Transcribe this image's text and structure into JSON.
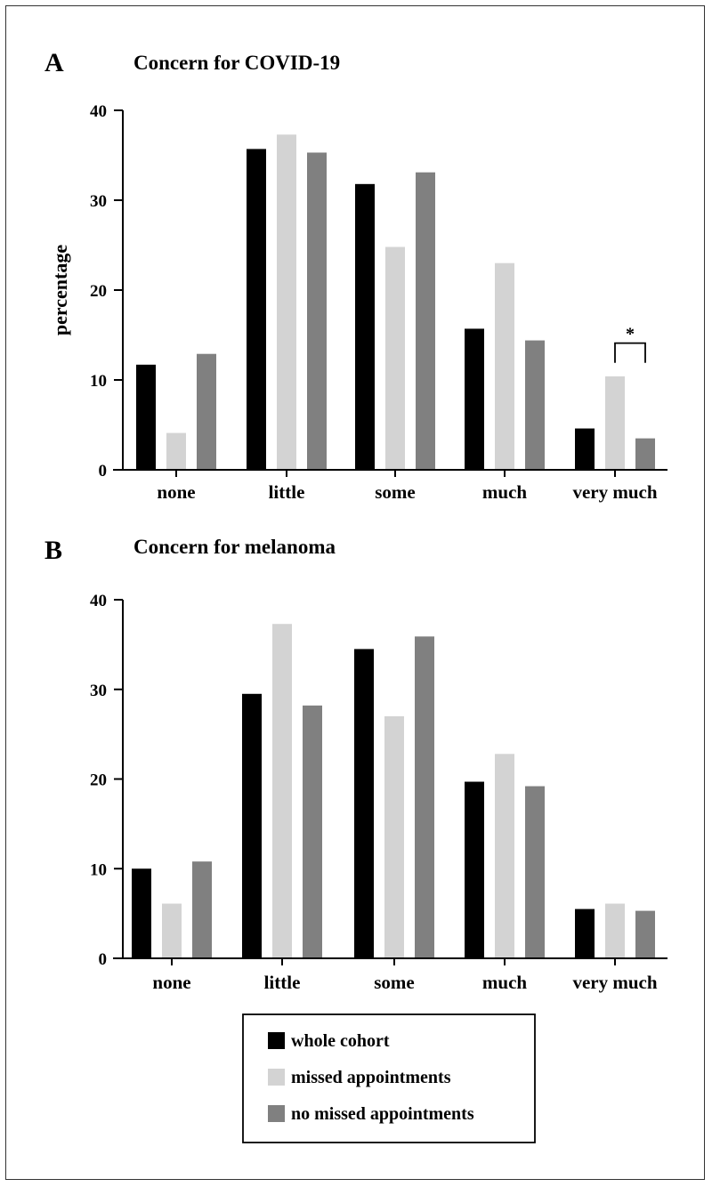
{
  "colors": {
    "whole_cohort": "#000000",
    "missed_appointments": "#d3d3d3",
    "no_missed_appointments": "#808080",
    "axis": "#000000"
  },
  "legend": {
    "items": [
      {
        "label": "whole cohort",
        "color": "#000000"
      },
      {
        "label": "missed appointments",
        "color": "#d3d3d3"
      },
      {
        "label": "no missed appointments",
        "color": "#808080"
      }
    ]
  },
  "chart_data": [
    {
      "type": "bar",
      "panel": "A",
      "title": "Concern for COVID-19",
      "xlabel": "",
      "ylabel": "percentage",
      "ylim": [
        0,
        40
      ],
      "yticks": [
        0,
        10,
        20,
        30,
        40
      ],
      "categories": [
        "none",
        "little",
        "some",
        "much",
        "very much"
      ],
      "series": [
        {
          "name": "whole cohort",
          "values": [
            11.7,
            35.7,
            31.8,
            15.7,
            4.6
          ]
        },
        {
          "name": "missed appointments",
          "values": [
            4.1,
            37.3,
            24.8,
            23.0,
            10.4
          ]
        },
        {
          "name": "no missed appointments",
          "values": [
            12.9,
            35.3,
            33.1,
            14.4,
            3.5
          ]
        }
      ],
      "annotations": [
        {
          "text": "*",
          "category": "very much",
          "between": [
            "missed appointments",
            "no missed appointments"
          ]
        }
      ]
    },
    {
      "type": "bar",
      "panel": "B",
      "title": "Concern for melanoma",
      "xlabel": "",
      "ylabel": "",
      "ylim": [
        0,
        40
      ],
      "yticks": [
        0,
        10,
        20,
        30,
        40
      ],
      "categories": [
        "none",
        "little",
        "some",
        "much",
        "very much"
      ],
      "series": [
        {
          "name": "whole cohort",
          "values": [
            10.0,
            29.5,
            34.5,
            19.7,
            5.5
          ]
        },
        {
          "name": "missed appointments",
          "values": [
            6.1,
            37.3,
            27.0,
            22.8,
            6.1
          ]
        },
        {
          "name": "no missed appointments",
          "values": [
            10.8,
            28.2,
            35.9,
            19.2,
            5.3
          ]
        }
      ],
      "annotations": []
    }
  ]
}
